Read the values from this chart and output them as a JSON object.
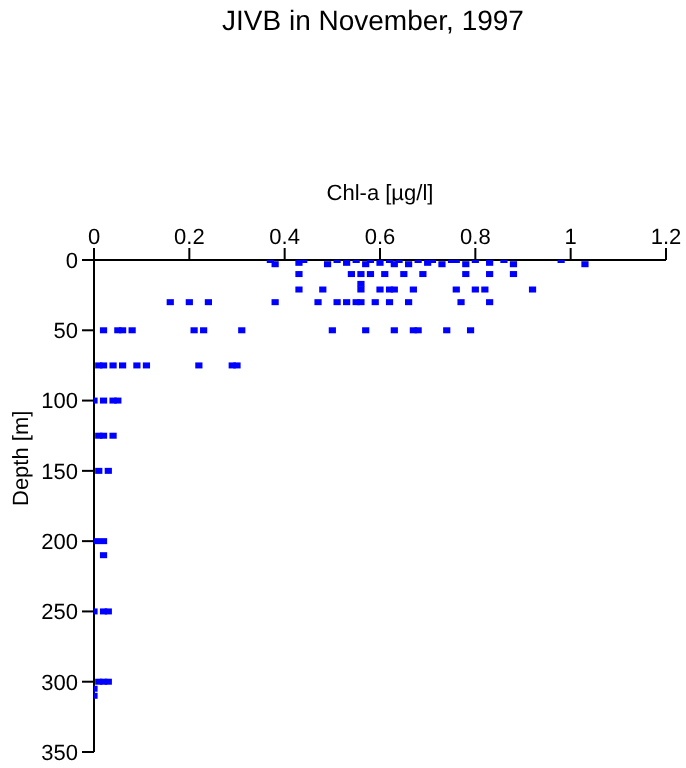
{
  "chart_data": {
    "type": "scatter",
    "title": "JIVB in November, 1997",
    "xlabel": "Chl-a [µg/l]",
    "ylabel": "Depth [m]",
    "xlim": [
      0,
      1.2
    ],
    "xticks": [
      0,
      0.2,
      0.4,
      0.6,
      0.8,
      1,
      1.2
    ],
    "ylim": [
      350,
      0
    ],
    "yticks": [
      0,
      50,
      100,
      150,
      200,
      250,
      300,
      350
    ],
    "marker": "square",
    "grid": false,
    "series": [
      {
        "color": "#0000ff",
        "x": [
          0.37,
          0.38,
          0.43,
          0.44,
          0.49,
          0.51,
          0.53,
          0.55,
          0.57,
          0.58,
          0.6,
          0.62,
          0.63,
          0.64,
          0.66,
          0.68,
          0.7,
          0.71,
          0.73,
          0.75,
          0.76,
          0.78,
          0.8,
          0.83,
          0.86,
          0.88,
          0.98,
          1.03,
          0.43,
          0.54,
          0.56,
          0.58,
          0.61,
          0.65,
          0.69,
          0.78,
          0.83,
          0.88,
          0.56,
          0.43,
          0.48,
          0.56,
          0.6,
          0.62,
          0.63,
          0.67,
          0.76,
          0.8,
          0.82,
          0.92,
          0.16,
          0.2,
          0.24,
          0.38,
          0.47,
          0.51,
          0.53,
          0.55,
          0.56,
          0.59,
          0.62,
          0.66,
          0.77,
          0.83,
          0.02,
          0.05,
          0.06,
          0.08,
          0.21,
          0.23,
          0.31,
          0.5,
          0.57,
          0.63,
          0.67,
          0.68,
          0.74,
          0.79,
          0.01,
          0.02,
          0.04,
          0.06,
          0.09,
          0.11,
          0.22,
          0.29,
          0.3,
          0,
          0.02,
          0.04,
          0.05,
          0.01,
          0.02,
          0.04,
          0.01,
          0.03,
          0.005,
          0.02,
          0.02,
          0,
          0.02,
          0.03,
          0.01,
          0.02,
          0.03,
          0,
          0
        ],
        "values": [
          0,
          3,
          2,
          0,
          3,
          0,
          2,
          0,
          3,
          0,
          2,
          0,
          3,
          0,
          3,
          0,
          2,
          0,
          3,
          0,
          0,
          3,
          0,
          2,
          0,
          3,
          0,
          3,
          10,
          10,
          10,
          10,
          10,
          10,
          10,
          10,
          10,
          10,
          17,
          21,
          21,
          21,
          21,
          21,
          21,
          21,
          21,
          21,
          21,
          21,
          30,
          30,
          30,
          30,
          30,
          30,
          30,
          30,
          30,
          30,
          30,
          30,
          30,
          30,
          50,
          50,
          50,
          50,
          50,
          50,
          50,
          50,
          50,
          50,
          50,
          50,
          50,
          50,
          75,
          75,
          75,
          75,
          75,
          75,
          75,
          75,
          75,
          100,
          100,
          100,
          100,
          125,
          125,
          125,
          150,
          150,
          200,
          200,
          210,
          250,
          250,
          250,
          300,
          300,
          300,
          305,
          310
        ]
      }
    ]
  }
}
